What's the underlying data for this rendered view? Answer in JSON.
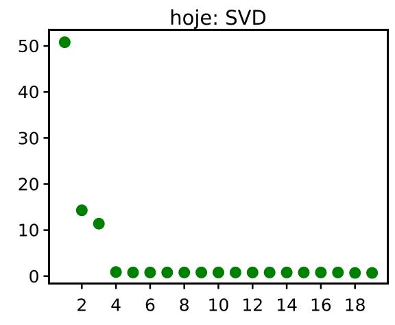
{
  "chart_data": {
    "type": "scatter",
    "title": "hoje: SVD",
    "xlabel": "",
    "ylabel": "",
    "x": [
      1,
      2,
      3,
      4,
      5,
      6,
      7,
      8,
      9,
      10,
      11,
      12,
      13,
      14,
      15,
      16,
      17,
      18,
      19
    ],
    "y": [
      50.8,
      14.3,
      11.4,
      0.9,
      0.8,
      0.8,
      0.8,
      0.8,
      0.8,
      0.8,
      0.8,
      0.8,
      0.8,
      0.8,
      0.8,
      0.8,
      0.8,
      0.7,
      0.7
    ],
    "xlim": [
      0.08,
      19.92
    ],
    "ylim": [
      -1.6,
      53.5
    ],
    "xticks": [
      2,
      4,
      6,
      8,
      10,
      12,
      14,
      16,
      18
    ],
    "yticks": [
      0,
      10,
      20,
      30,
      40,
      50
    ],
    "marker_color": "#008000",
    "grid": false,
    "legend": false
  }
}
